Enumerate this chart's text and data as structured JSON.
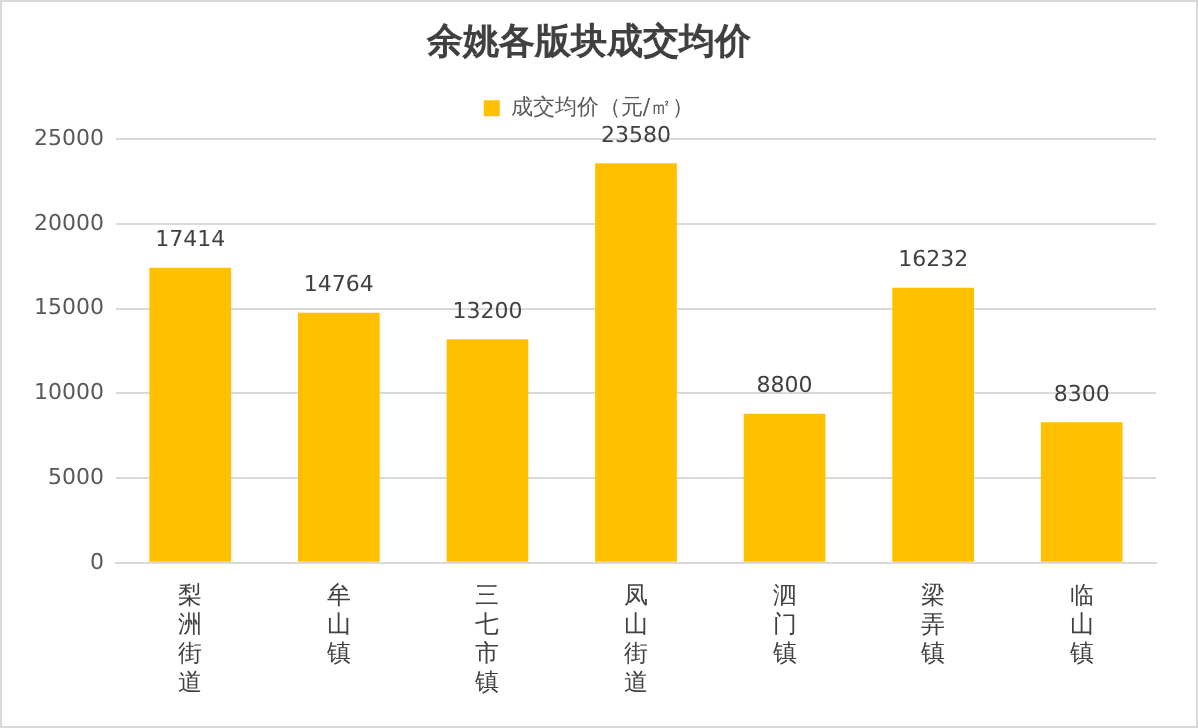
{
  "chart_data": {
    "type": "bar",
    "title": "余姚各版块成交均价",
    "categories": [
      "梨洲街道",
      "牟山镇",
      "三七市镇",
      "凤山街道",
      "泗门镇",
      "梁弄镇",
      "临山镇"
    ],
    "series": [
      {
        "name": "成交均价（元/㎡）",
        "color": "#ffc000",
        "values": [
          17414,
          14764,
          13200,
          23580,
          8800,
          16232,
          8300
        ]
      }
    ],
    "ylim": [
      0,
      25000
    ],
    "yticks": [
      0,
      5000,
      10000,
      15000,
      20000,
      25000
    ],
    "grid": "y",
    "legend": "top",
    "data_labels": true
  }
}
